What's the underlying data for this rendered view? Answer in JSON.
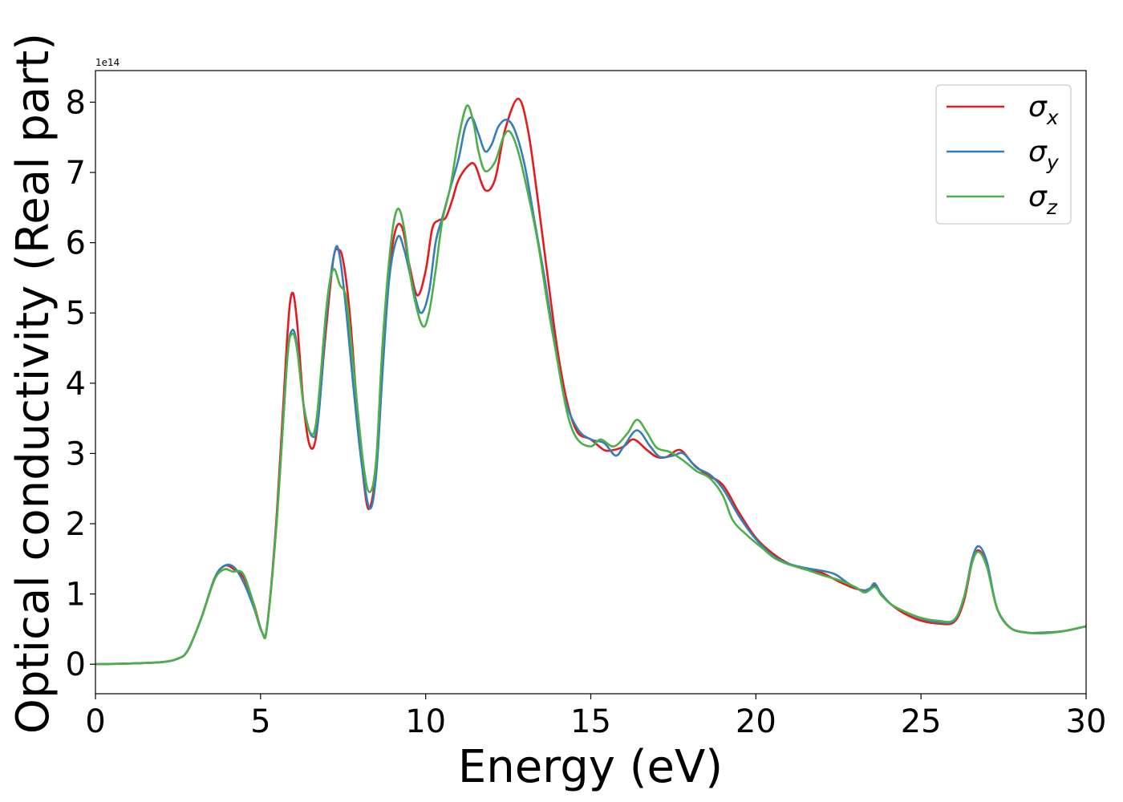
{
  "chart_data": {
    "type": "line",
    "title": "",
    "xlabel": "Energy (eV)",
    "ylabel": "Optical conductivity (Real part)",
    "y_offset_label": "1e14",
    "y_scale": 100000000000000.0,
    "xlim": [
      0,
      30
    ],
    "ylim": [
      -0.42,
      8.45
    ],
    "xticks": [
      0,
      5,
      10,
      15,
      20,
      25,
      30
    ],
    "yticks": [
      0,
      1,
      2,
      3,
      4,
      5,
      6,
      7,
      8
    ],
    "grid": false,
    "legend_position": "top-right",
    "series": [
      {
        "name": "σx",
        "legend_main": "σ",
        "legend_sub": "x",
        "color": "#e41a1c",
        "points": [
          [
            0,
            0
          ],
          [
            1,
            0.01
          ],
          [
            2,
            0.03
          ],
          [
            2.5,
            0.08
          ],
          [
            2.8,
            0.2
          ],
          [
            3.2,
            0.65
          ],
          [
            3.6,
            1.2
          ],
          [
            3.9,
            1.4
          ],
          [
            4.2,
            1.35
          ],
          [
            4.5,
            1.22
          ],
          [
            4.8,
            0.85
          ],
          [
            5.05,
            0.45
          ],
          [
            5.2,
            0.55
          ],
          [
            5.5,
            2.2
          ],
          [
            5.8,
            4.6
          ],
          [
            5.95,
            5.28
          ],
          [
            6.1,
            4.9
          ],
          [
            6.3,
            3.7
          ],
          [
            6.5,
            3.1
          ],
          [
            6.7,
            3.3
          ],
          [
            6.95,
            4.6
          ],
          [
            7.2,
            5.75
          ],
          [
            7.35,
            5.9
          ],
          [
            7.5,
            5.75
          ],
          [
            7.7,
            5.0
          ],
          [
            7.95,
            3.5
          ],
          [
            8.15,
            2.5
          ],
          [
            8.3,
            2.22
          ],
          [
            8.5,
            2.8
          ],
          [
            8.7,
            4.3
          ],
          [
            8.9,
            5.6
          ],
          [
            9.1,
            6.2
          ],
          [
            9.3,
            6.2
          ],
          [
            9.5,
            5.7
          ],
          [
            9.75,
            5.25
          ],
          [
            10.0,
            5.6
          ],
          [
            10.2,
            6.2
          ],
          [
            10.4,
            6.32
          ],
          [
            10.6,
            6.35
          ],
          [
            10.8,
            6.6
          ],
          [
            11.0,
            6.9
          ],
          [
            11.3,
            7.1
          ],
          [
            11.5,
            7.1
          ],
          [
            11.8,
            6.75
          ],
          [
            12.1,
            6.9
          ],
          [
            12.4,
            7.6
          ],
          [
            12.8,
            8.05
          ],
          [
            13.1,
            7.6
          ],
          [
            13.4,
            6.6
          ],
          [
            13.7,
            5.5
          ],
          [
            14.0,
            4.45
          ],
          [
            14.3,
            3.7
          ],
          [
            14.6,
            3.3
          ],
          [
            15.0,
            3.2
          ],
          [
            15.4,
            3.05
          ],
          [
            15.7,
            3.05
          ],
          [
            16.0,
            3.1
          ],
          [
            16.3,
            3.2
          ],
          [
            16.7,
            3.05
          ],
          [
            17.0,
            2.95
          ],
          [
            17.3,
            2.95
          ],
          [
            17.7,
            3.05
          ],
          [
            18.1,
            2.85
          ],
          [
            18.5,
            2.7
          ],
          [
            19.0,
            2.55
          ],
          [
            19.5,
            2.15
          ],
          [
            20.0,
            1.8
          ],
          [
            20.5,
            1.58
          ],
          [
            21.0,
            1.43
          ],
          [
            21.5,
            1.35
          ],
          [
            22.0,
            1.3
          ],
          [
            22.5,
            1.18
          ],
          [
            23.0,
            1.08
          ],
          [
            23.4,
            1.05
          ],
          [
            23.6,
            1.12
          ],
          [
            23.8,
            1.0
          ],
          [
            24.1,
            0.85
          ],
          [
            24.5,
            0.72
          ],
          [
            25.0,
            0.62
          ],
          [
            25.5,
            0.58
          ],
          [
            26.0,
            0.6
          ],
          [
            26.3,
            0.9
          ],
          [
            26.55,
            1.45
          ],
          [
            26.75,
            1.62
          ],
          [
            27.0,
            1.4
          ],
          [
            27.3,
            0.8
          ],
          [
            27.7,
            0.52
          ],
          [
            28.2,
            0.45
          ],
          [
            28.7,
            0.45
          ],
          [
            29.3,
            0.47
          ],
          [
            30.0,
            0.54
          ]
        ]
      },
      {
        "name": "σy",
        "legend_main": "σ",
        "legend_sub": "y",
        "color": "#377eb8",
        "points": [
          [
            0,
            0
          ],
          [
            1,
            0.01
          ],
          [
            2,
            0.03
          ],
          [
            2.5,
            0.08
          ],
          [
            2.8,
            0.2
          ],
          [
            3.2,
            0.65
          ],
          [
            3.6,
            1.22
          ],
          [
            3.9,
            1.4
          ],
          [
            4.2,
            1.38
          ],
          [
            4.5,
            1.15
          ],
          [
            4.8,
            0.8
          ],
          [
            5.05,
            0.45
          ],
          [
            5.2,
            0.55
          ],
          [
            5.5,
            2.1
          ],
          [
            5.8,
            4.3
          ],
          [
            5.95,
            4.75
          ],
          [
            6.1,
            4.55
          ],
          [
            6.3,
            3.7
          ],
          [
            6.55,
            3.25
          ],
          [
            6.75,
            3.5
          ],
          [
            7.0,
            5.0
          ],
          [
            7.25,
            5.88
          ],
          [
            7.4,
            5.8
          ],
          [
            7.6,
            5.0
          ],
          [
            7.8,
            4.0
          ],
          [
            8.05,
            2.9
          ],
          [
            8.3,
            2.22
          ],
          [
            8.5,
            2.7
          ],
          [
            8.7,
            4.2
          ],
          [
            8.9,
            5.5
          ],
          [
            9.15,
            6.08
          ],
          [
            9.35,
            5.9
          ],
          [
            9.6,
            5.4
          ],
          [
            9.85,
            5.0
          ],
          [
            10.1,
            5.3
          ],
          [
            10.3,
            6.0
          ],
          [
            10.5,
            6.35
          ],
          [
            10.7,
            6.7
          ],
          [
            11.0,
            7.2
          ],
          [
            11.2,
            7.65
          ],
          [
            11.4,
            7.78
          ],
          [
            11.6,
            7.55
          ],
          [
            11.8,
            7.3
          ],
          [
            12.0,
            7.4
          ],
          [
            12.2,
            7.65
          ],
          [
            12.45,
            7.75
          ],
          [
            12.7,
            7.6
          ],
          [
            13.0,
            7.1
          ],
          [
            13.3,
            6.3
          ],
          [
            13.6,
            5.5
          ],
          [
            13.9,
            4.6
          ],
          [
            14.2,
            3.8
          ],
          [
            14.6,
            3.35
          ],
          [
            15.0,
            3.2
          ],
          [
            15.4,
            3.15
          ],
          [
            15.75,
            2.97
          ],
          [
            16.0,
            3.1
          ],
          [
            16.4,
            3.33
          ],
          [
            16.8,
            3.1
          ],
          [
            17.1,
            2.95
          ],
          [
            17.5,
            2.97
          ],
          [
            17.8,
            3.0
          ],
          [
            18.2,
            2.8
          ],
          [
            18.6,
            2.7
          ],
          [
            19.0,
            2.5
          ],
          [
            19.5,
            2.1
          ],
          [
            20.0,
            1.78
          ],
          [
            20.5,
            1.55
          ],
          [
            21.0,
            1.43
          ],
          [
            21.5,
            1.37
          ],
          [
            22.0,
            1.33
          ],
          [
            22.4,
            1.28
          ],
          [
            22.8,
            1.15
          ],
          [
            23.2,
            1.05
          ],
          [
            23.45,
            1.08
          ],
          [
            23.6,
            1.15
          ],
          [
            23.8,
            1.0
          ],
          [
            24.1,
            0.85
          ],
          [
            24.5,
            0.75
          ],
          [
            25.0,
            0.65
          ],
          [
            25.5,
            0.6
          ],
          [
            26.0,
            0.62
          ],
          [
            26.3,
            0.95
          ],
          [
            26.55,
            1.5
          ],
          [
            26.75,
            1.68
          ],
          [
            27.0,
            1.45
          ],
          [
            27.3,
            0.8
          ],
          [
            27.7,
            0.52
          ],
          [
            28.2,
            0.45
          ],
          [
            28.7,
            0.45
          ],
          [
            29.3,
            0.47
          ],
          [
            30.0,
            0.54
          ]
        ]
      },
      {
        "name": "σz",
        "legend_main": "σ",
        "legend_sub": "z",
        "color": "#4daf4a",
        "points": [
          [
            0,
            0
          ],
          [
            1,
            0.01
          ],
          [
            2,
            0.03
          ],
          [
            2.5,
            0.08
          ],
          [
            2.8,
            0.2
          ],
          [
            3.2,
            0.65
          ],
          [
            3.6,
            1.2
          ],
          [
            3.9,
            1.35
          ],
          [
            4.15,
            1.32
          ],
          [
            4.45,
            1.3
          ],
          [
            4.7,
            1.0
          ],
          [
            5.05,
            0.45
          ],
          [
            5.2,
            0.55
          ],
          [
            5.5,
            2.1
          ],
          [
            5.8,
            4.3
          ],
          [
            5.95,
            4.7
          ],
          [
            6.1,
            4.5
          ],
          [
            6.3,
            3.7
          ],
          [
            6.5,
            3.3
          ],
          [
            6.7,
            3.5
          ],
          [
            7.0,
            5.1
          ],
          [
            7.2,
            5.62
          ],
          [
            7.4,
            5.4
          ],
          [
            7.6,
            5.2
          ],
          [
            7.8,
            4.3
          ],
          [
            8.1,
            2.9
          ],
          [
            8.3,
            2.45
          ],
          [
            8.5,
            2.9
          ],
          [
            8.7,
            4.6
          ],
          [
            8.95,
            6.0
          ],
          [
            9.15,
            6.48
          ],
          [
            9.35,
            6.2
          ],
          [
            9.6,
            5.35
          ],
          [
            9.9,
            4.82
          ],
          [
            10.1,
            5.0
          ],
          [
            10.3,
            5.6
          ],
          [
            10.5,
            6.3
          ],
          [
            10.75,
            6.8
          ],
          [
            11.0,
            7.5
          ],
          [
            11.25,
            7.95
          ],
          [
            11.45,
            7.7
          ],
          [
            11.6,
            7.3
          ],
          [
            11.8,
            7.02
          ],
          [
            12.1,
            7.15
          ],
          [
            12.35,
            7.5
          ],
          [
            12.55,
            7.58
          ],
          [
            12.8,
            7.3
          ],
          [
            13.1,
            6.7
          ],
          [
            13.4,
            6.0
          ],
          [
            13.7,
            5.1
          ],
          [
            14.0,
            4.3
          ],
          [
            14.3,
            3.55
          ],
          [
            14.6,
            3.2
          ],
          [
            15.0,
            3.1
          ],
          [
            15.3,
            3.2
          ],
          [
            15.7,
            3.1
          ],
          [
            16.1,
            3.28
          ],
          [
            16.4,
            3.48
          ],
          [
            16.7,
            3.3
          ],
          [
            17.0,
            3.08
          ],
          [
            17.4,
            3.02
          ],
          [
            17.8,
            2.9
          ],
          [
            18.2,
            2.75
          ],
          [
            18.6,
            2.65
          ],
          [
            19.0,
            2.4
          ],
          [
            19.3,
            2.05
          ],
          [
            19.7,
            1.85
          ],
          [
            20.2,
            1.65
          ],
          [
            20.6,
            1.5
          ],
          [
            21.0,
            1.42
          ],
          [
            21.5,
            1.35
          ],
          [
            22.0,
            1.27
          ],
          [
            22.5,
            1.2
          ],
          [
            23.0,
            1.1
          ],
          [
            23.3,
            1.02
          ],
          [
            23.6,
            1.1
          ],
          [
            23.8,
            0.98
          ],
          [
            24.1,
            0.85
          ],
          [
            24.5,
            0.75
          ],
          [
            25.0,
            0.66
          ],
          [
            25.5,
            0.62
          ],
          [
            26.0,
            0.63
          ],
          [
            26.3,
            0.95
          ],
          [
            26.55,
            1.45
          ],
          [
            26.75,
            1.6
          ],
          [
            27.0,
            1.38
          ],
          [
            27.3,
            0.8
          ],
          [
            27.7,
            0.52
          ],
          [
            28.2,
            0.45
          ],
          [
            28.7,
            0.44
          ],
          [
            29.3,
            0.47
          ],
          [
            30.0,
            0.54
          ]
        ]
      }
    ]
  }
}
